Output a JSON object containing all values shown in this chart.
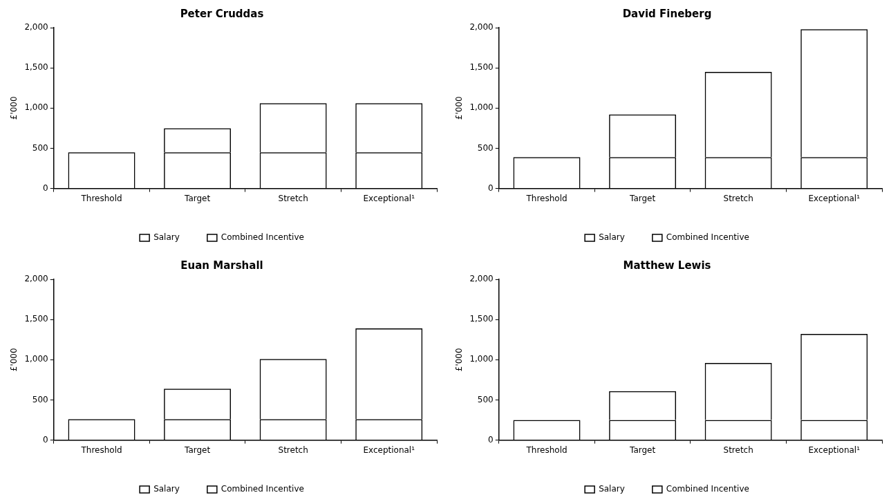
{
  "chart_data": [
    {
      "type": "bar",
      "title": "Peter Cruddas",
      "ylabel": "£'000",
      "categories": [
        "Threshold",
        "Target",
        "Stretch",
        "Exceptional¹"
      ],
      "stacked": true,
      "grid": false,
      "legend": "bottom",
      "ylim": [
        0,
        2000
      ],
      "yticks": [
        {
          "value": 0,
          "label": "0"
        },
        {
          "value": 500,
          "label": "500"
        },
        {
          "value": 1000,
          "label": "1,000"
        },
        {
          "value": 1500,
          "label": "1,500"
        },
        {
          "value": 2000,
          "label": "2,000"
        }
      ],
      "series": [
        {
          "name": "Salary",
          "color": "#000000",
          "values": [
            450,
            450,
            450,
            450
          ]
        },
        {
          "name": "Combined Incentive",
          "color": "#000000",
          "values": [
            null,
            300,
            610,
            610
          ]
        }
      ]
    },
    {
      "type": "bar",
      "title": "David Fineberg",
      "ylabel": "£'000",
      "categories": [
        "Threshold",
        "Target",
        "Stretch",
        "Exceptional¹"
      ],
      "stacked": true,
      "grid": false,
      "legend": "bottom",
      "ylim": [
        0,
        2000
      ],
      "yticks": [
        {
          "value": 0,
          "label": "0"
        },
        {
          "value": 500,
          "label": "500"
        },
        {
          "value": 1000,
          "label": "1,000"
        },
        {
          "value": 1500,
          "label": "1,500"
        },
        {
          "value": 2000,
          "label": "2,000"
        }
      ],
      "series": [
        {
          "name": "Salary",
          "color": "#000000",
          "values": [
            390,
            390,
            390,
            390
          ]
        },
        {
          "name": "Combined Incentive",
          "color": "#000000",
          "values": [
            null,
            530,
            1060,
            1590
          ]
        }
      ]
    },
    {
      "type": "bar",
      "title": "Euan Marshall",
      "ylabel": "£'000",
      "categories": [
        "Threshold",
        "Target",
        "Stretch",
        "Exceptional¹"
      ],
      "stacked": true,
      "grid": false,
      "legend": "bottom",
      "ylim": [
        0,
        2000
      ],
      "yticks": [
        {
          "value": 0,
          "label": "0"
        },
        {
          "value": 500,
          "label": "500"
        },
        {
          "value": 1000,
          "label": "1,000"
        },
        {
          "value": 1500,
          "label": "1,500"
        },
        {
          "value": 2000,
          "label": "2,000"
        }
      ],
      "series": [
        {
          "name": "Salary",
          "color": "#000000",
          "values": [
            260,
            260,
            260,
            260
          ]
        },
        {
          "name": "Combined Incentive",
          "color": "#000000",
          "values": [
            null,
            380,
            750,
            1130
          ]
        }
      ]
    },
    {
      "type": "bar",
      "title": "Matthew Lewis",
      "ylabel": "£'000",
      "categories": [
        "Threshold",
        "Target",
        "Stretch",
        "Exceptional¹"
      ],
      "stacked": true,
      "grid": false,
      "legend": "bottom",
      "ylim": [
        0,
        2000
      ],
      "yticks": [
        {
          "value": 0,
          "label": "0"
        },
        {
          "value": 500,
          "label": "500"
        },
        {
          "value": 1000,
          "label": "1,000"
        },
        {
          "value": 1500,
          "label": "1,500"
        },
        {
          "value": 2000,
          "label": "2,000"
        }
      ],
      "series": [
        {
          "name": "Salary",
          "color": "#000000",
          "values": [
            250,
            250,
            250,
            250
          ]
        },
        {
          "name": "Combined Incentive",
          "color": "#000000",
          "values": [
            null,
            360,
            710,
            1070
          ]
        }
      ]
    }
  ]
}
